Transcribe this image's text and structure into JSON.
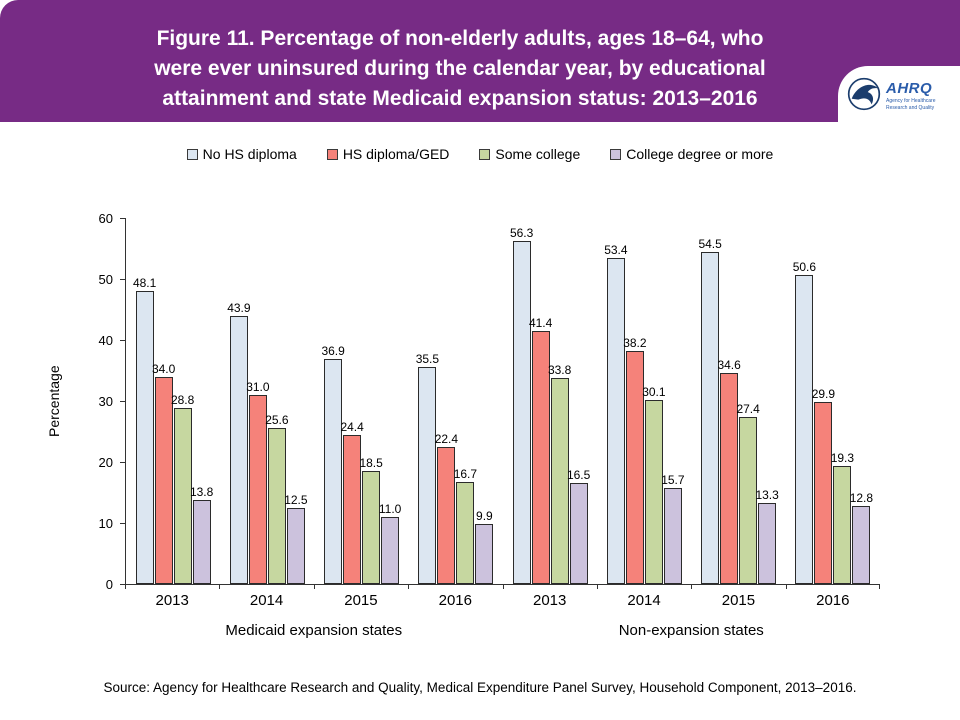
{
  "header": {
    "title_lines": [
      "Figure 11. Percentage of non-elderly adults, ages 18–64, who",
      "were ever uninsured during the calendar year, by educational",
      "attainment and state Medicaid expansion status: 2013–2016"
    ],
    "logo": {
      "wordmark": "AHRQ",
      "tagline": "Agency for Healthcare Research and Quality"
    }
  },
  "chart_data": {
    "type": "bar",
    "title": "Figure 11. Percentage of non-elderly adults, ages 18–64, who were ever uninsured during the calendar year, by educational attainment and state Medicaid expansion status: 2013–2016",
    "xlabel": "",
    "ylabel": "Percentage",
    "ylim": [
      0,
      60
    ],
    "yticks": [
      0,
      10,
      20,
      30,
      40,
      50,
      60
    ],
    "grid": false,
    "legend_position": "top",
    "categories": [
      "2013",
      "2014",
      "2015",
      "2016",
      "2013",
      "2014",
      "2015",
      "2016"
    ],
    "group_labels": [
      "Medicaid expansion states",
      "Non-expansion states"
    ],
    "series": [
      {
        "name": "No HS diploma",
        "color": "#dce6f1",
        "values": [
          48.1,
          43.9,
          36.9,
          35.5,
          56.3,
          53.4,
          54.5,
          50.6
        ]
      },
      {
        "name": "HS diploma/GED",
        "color": "#f5827a",
        "values": [
          34.0,
          31.0,
          24.4,
          22.4,
          41.4,
          38.2,
          34.6,
          29.9
        ]
      },
      {
        "name": "Some college",
        "color": "#c6d7a0",
        "values": [
          28.8,
          25.6,
          18.5,
          16.7,
          33.8,
          30.1,
          27.4,
          19.3
        ]
      },
      {
        "name": "College degree or more",
        "color": "#ccc2dd",
        "values": [
          13.8,
          12.5,
          11.0,
          9.9,
          16.5,
          15.7,
          13.3,
          12.8
        ]
      }
    ]
  },
  "footer": {
    "source": "Source: Agency for Healthcare Research and Quality, Medical Expenditure Panel Survey, Household Component, 2013–2016."
  }
}
